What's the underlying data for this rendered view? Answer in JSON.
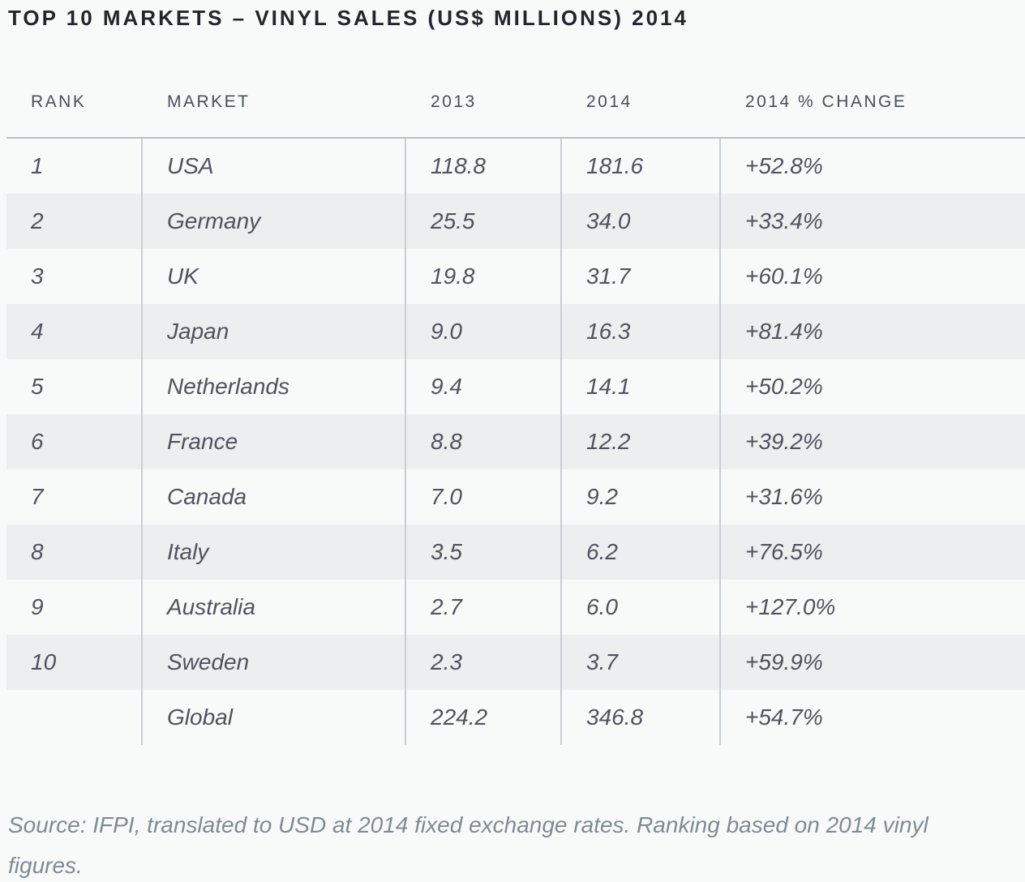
{
  "title": "TOP 10 MARKETS – VINYL SALES (US$ MILLIONS) 2014",
  "chart_data": {
    "type": "table",
    "title": "TOP 10 MARKETS – VINYL SALES (US$ MILLIONS) 2014",
    "columns": [
      "RANK",
      "MARKET",
      "2013",
      "2014",
      "2014 % CHANGE"
    ],
    "rows": [
      [
        "1",
        "USA",
        "118.8",
        "181.6",
        "+52.8%"
      ],
      [
        "2",
        "Germany",
        "25.5",
        "34.0",
        "+33.4%"
      ],
      [
        "3",
        "UK",
        "19.8",
        "31.7",
        "+60.1%"
      ],
      [
        "4",
        "Japan",
        "9.0",
        "16.3",
        "+81.4%"
      ],
      [
        "5",
        "Netherlands",
        "9.4",
        "14.1",
        "+50.2%"
      ],
      [
        "6",
        "France",
        "8.8",
        "12.2",
        "+39.2%"
      ],
      [
        "7",
        "Canada",
        "7.0",
        "9.2",
        "+31.6%"
      ],
      [
        "8",
        "Italy",
        "3.5",
        "6.2",
        "+76.5%"
      ],
      [
        "9",
        "Australia",
        "2.7",
        "6.0",
        "+127.0%"
      ],
      [
        "10",
        "Sweden",
        "2.3",
        "3.7",
        "+59.9%"
      ],
      [
        "",
        "Global",
        "224.2",
        "346.8",
        "+54.7%"
      ]
    ],
    "units": "US$ millions",
    "layout": {
      "striped": true,
      "column_dividers": true,
      "header_outside_border": true
    }
  },
  "source_note": "Source: IFPI, translated to USD at 2014 fixed exchange rates. Ranking based on 2014 vinyl figures.",
  "colors": {
    "page_background": "#f8fafa",
    "stripe_row": "#eceef0",
    "top_border": "#b9c0c5",
    "column_divider": "#c9ced2",
    "title_text": "#24242c",
    "header_text": "#4a4f5b",
    "body_text": "#50525e",
    "source_text": "#7f8b93"
  }
}
